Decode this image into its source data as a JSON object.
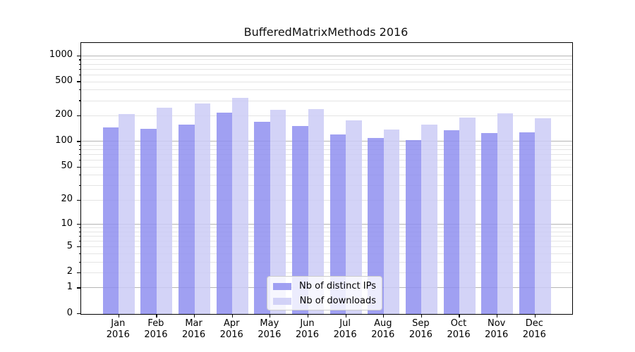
{
  "title": "BufferedMatrixMethods 2016",
  "colors": {
    "distinct_ips": "#8f8ff0",
    "downloads": "#cbcbf6",
    "bar_alpha": 0.85,
    "grid_major": "#b4b4b4",
    "grid_minor": "#e4e4e4",
    "axis": "#000000"
  },
  "legend": [
    {
      "label": "Nb of distinct IPs",
      "series": "distinct_ips"
    },
    {
      "label": "Nb of downloads",
      "series": "downloads"
    }
  ],
  "y_axis": {
    "tick_values": [
      0,
      1,
      2,
      5,
      10,
      20,
      50,
      100,
      200,
      500,
      1000
    ],
    "tick_labels": [
      "0",
      "1",
      "2",
      "5",
      "10",
      "20",
      "50",
      "100",
      "200",
      "500",
      "1000"
    ]
  },
  "x_axis": {
    "tick_labels": [
      "Jan 2016",
      "Feb 2016",
      "Mar 2016",
      "Apr 2016",
      "May 2016",
      "Jun 2016",
      "Jul 2016",
      "Aug 2016",
      "Sep 2016",
      "Oct 2016",
      "Nov 2016",
      "Dec 2016"
    ]
  },
  "chart_data": {
    "type": "bar",
    "title": "BufferedMatrixMethods 2016",
    "categories": [
      "Jan 2016",
      "Feb 2016",
      "Mar 2016",
      "Apr 2016",
      "May 2016",
      "Jun 2016",
      "Jul 2016",
      "Aug 2016",
      "Sep 2016",
      "Oct 2016",
      "Nov 2016",
      "Dec 2016"
    ],
    "series": [
      {
        "name": "Nb of distinct IPs",
        "values": [
          146,
          140,
          158,
          217,
          170,
          152,
          122,
          109,
          104,
          136,
          125,
          128
        ]
      },
      {
        "name": "Nb of downloads",
        "values": [
          210,
          248,
          280,
          323,
          236,
          240,
          178,
          138,
          157,
          189,
          212,
          187
        ]
      }
    ],
    "xlabel": "",
    "ylabel": "",
    "yscale": "log(1+y)",
    "ylim": [
      0,
      1414
    ],
    "grid": true,
    "legend_position": "lower center"
  }
}
